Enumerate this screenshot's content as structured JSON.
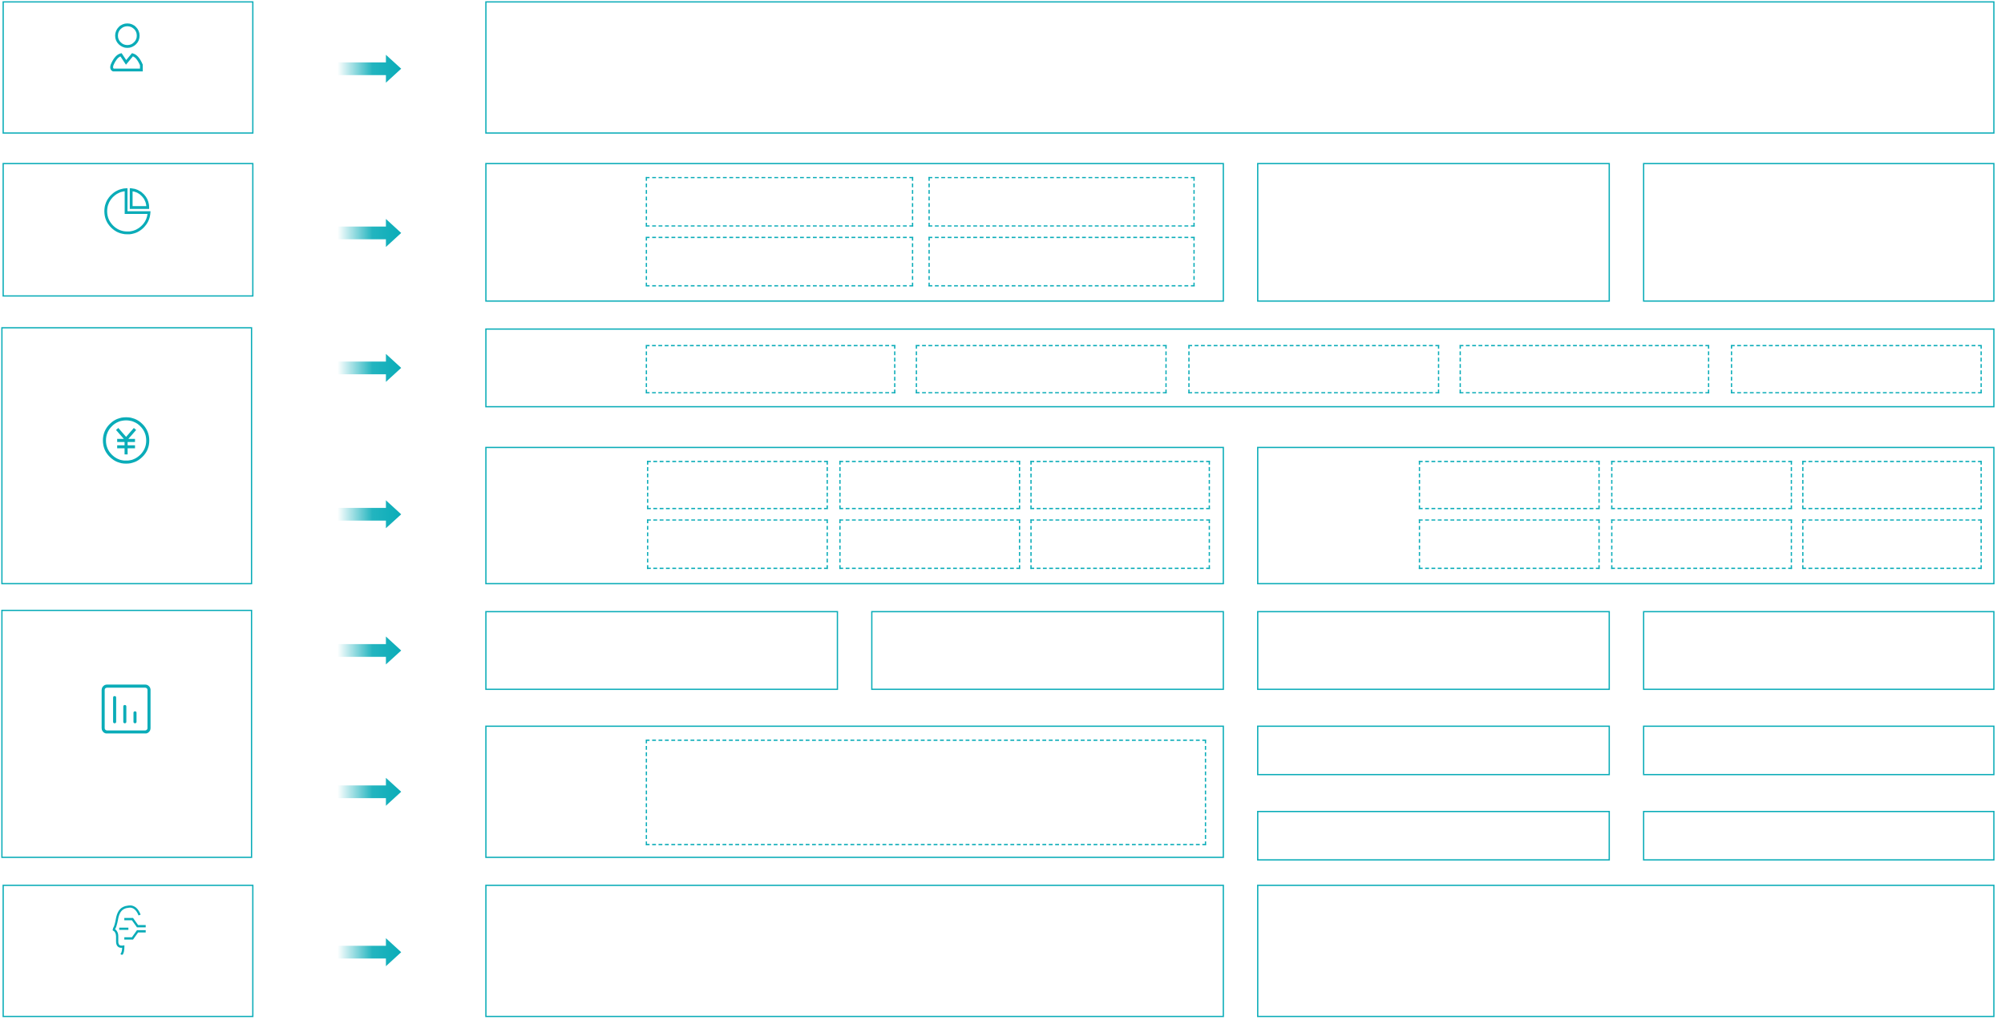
{
  "colors": {
    "accent": "#0aacb8",
    "background": "#ffffff"
  },
  "categories": [
    {
      "icon": "user-icon"
    },
    {
      "icon": "pie-chart-icon"
    },
    {
      "icon": "yen-coin-icon"
    },
    {
      "icon": "bar-chart-report-icon"
    },
    {
      "icon": "head-speech-icon"
    }
  ],
  "connector": {
    "icon": "arrow-right-icon"
  }
}
